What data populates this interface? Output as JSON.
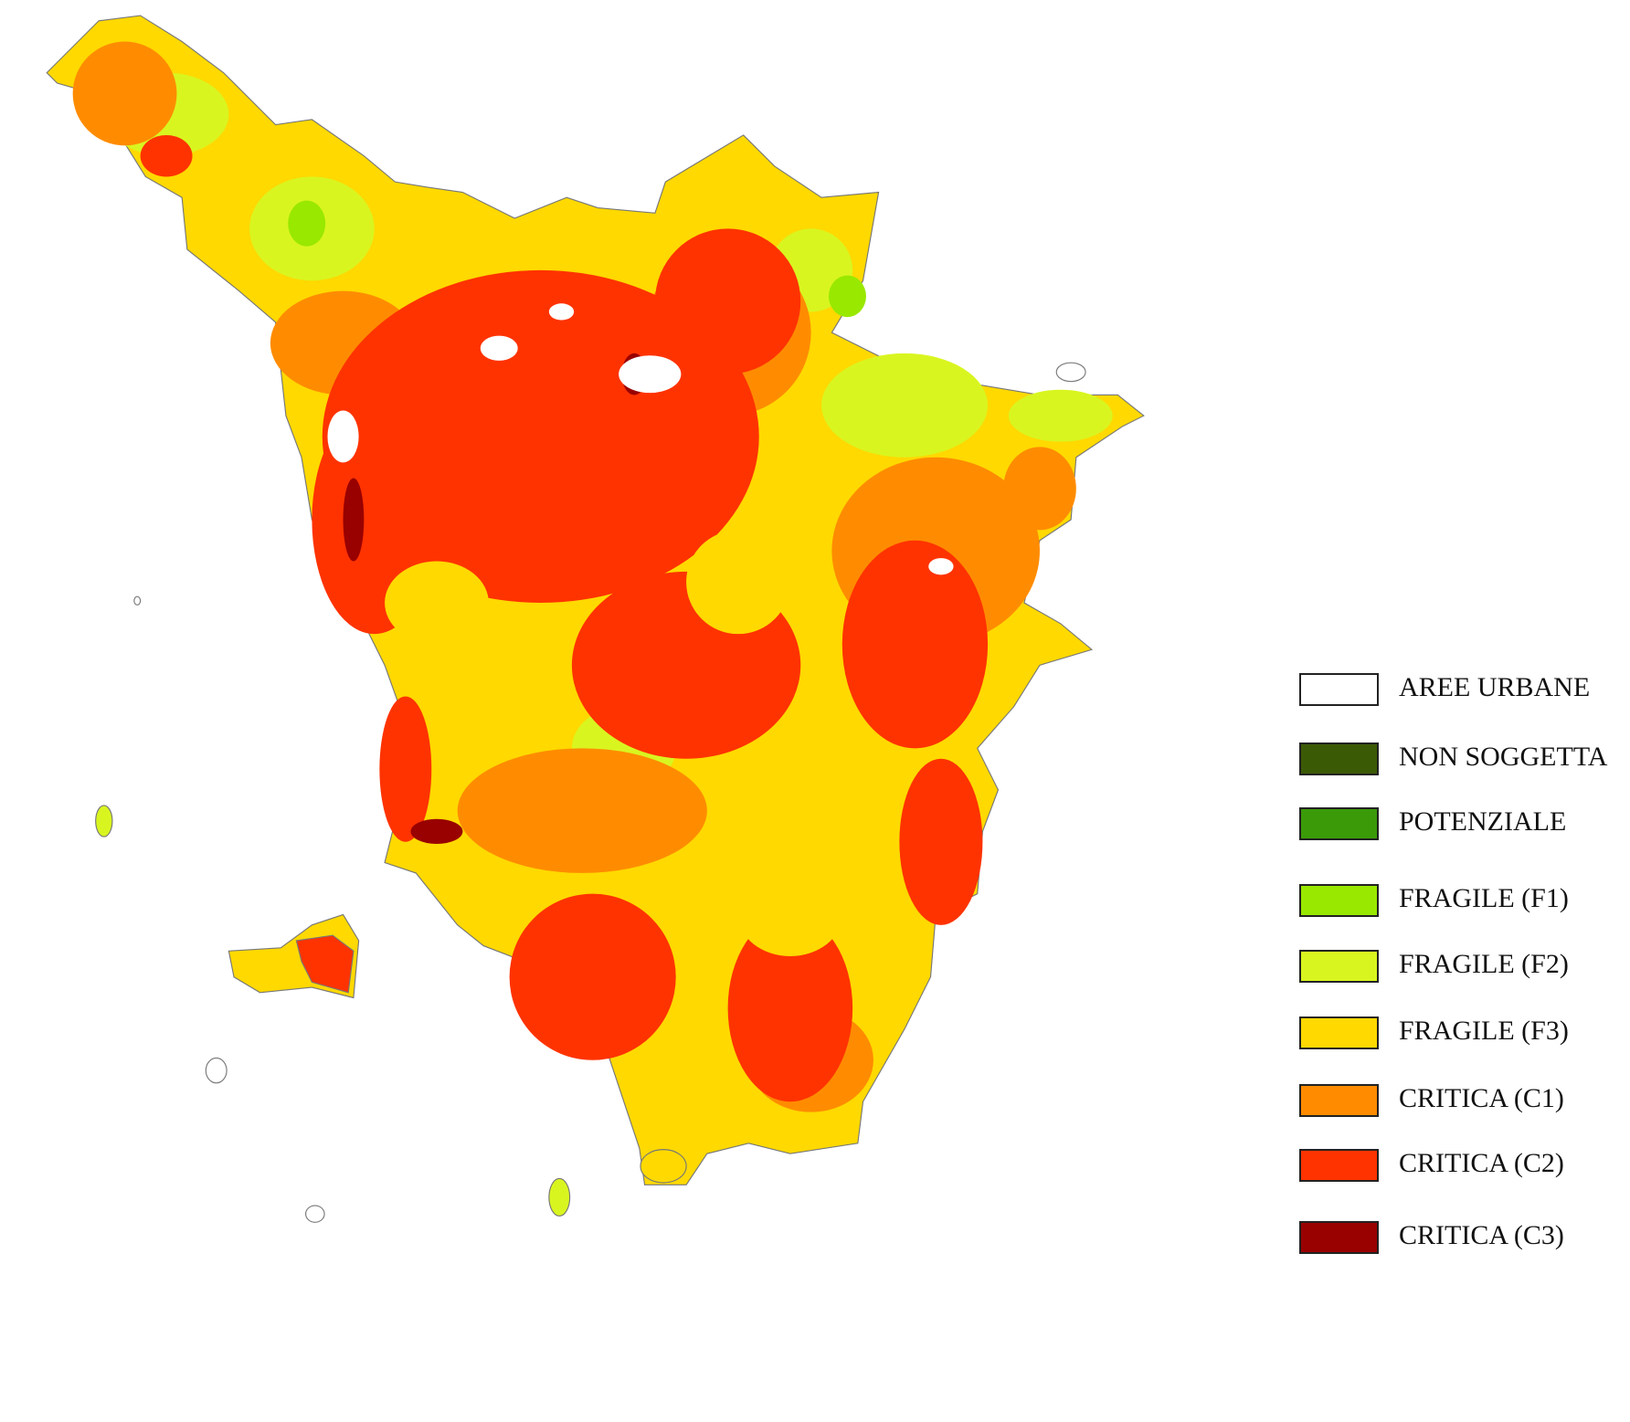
{
  "legend": {
    "items": [
      {
        "label": "AREE URBANE",
        "color": "#ffffff"
      },
      {
        "label": "NON SOGGETTA",
        "color": "#3b5a05"
      },
      {
        "label": "POTENZIALE",
        "color": "#3a9a08"
      },
      {
        "label": "FRAGILE (F1)",
        "color": "#99e800"
      },
      {
        "label": "FRAGILE (F2)",
        "color": "#d9f520"
      },
      {
        "label": "FRAGILE (F3)",
        "color": "#ffd900"
      },
      {
        "label": "CRITICA (C1)",
        "color": "#ff8c00"
      },
      {
        "label": "CRITICA (C2)",
        "color": "#ff3300"
      },
      {
        "label": "CRITICA (C3)",
        "color": "#990000"
      }
    ]
  }
}
